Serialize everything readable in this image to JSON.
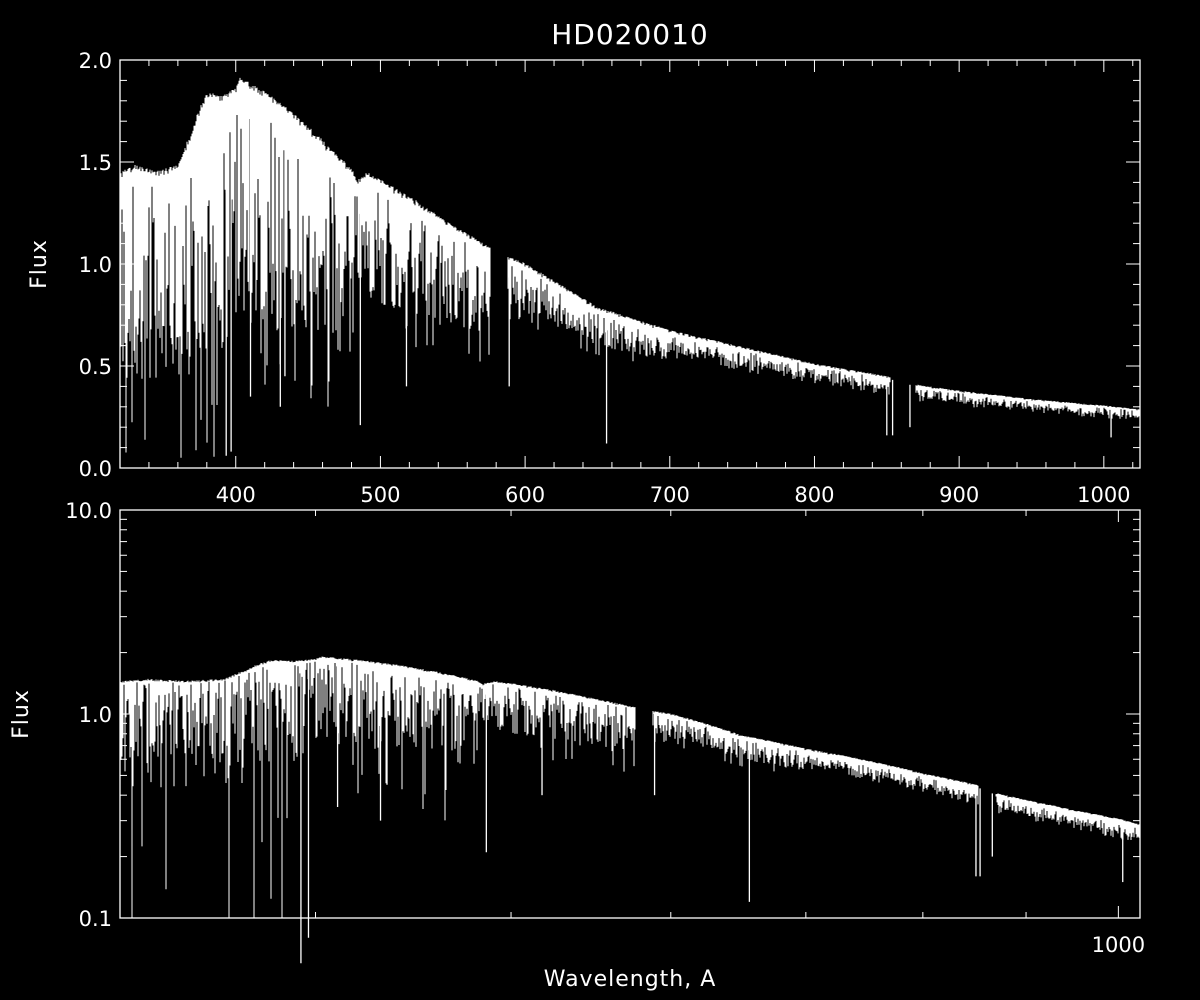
{
  "chart_data": {
    "type": "line",
    "title": "HD020010",
    "xlabel": "Wavelength, A",
    "panels": [
      {
        "scale": "linear",
        "x_range": [
          320,
          1025
        ],
        "y_range": [
          0,
          2
        ],
        "ylabel": "Flux",
        "x_ticks": [
          400,
          500,
          600,
          700,
          800,
          900,
          1000
        ],
        "y_ticks": [
          0,
          0.5,
          1,
          1.5,
          2
        ],
        "x_tick_labels": [
          "400",
          "500",
          "600",
          "700",
          "800",
          "900",
          "1000"
        ],
        "y_tick_labels": [
          "0.0",
          "0.5",
          "1.0",
          "1.5",
          "2.0"
        ]
      },
      {
        "scale": "log-log",
        "x_range": [
          320,
          1025
        ],
        "y_range": [
          0.1,
          10
        ],
        "ylabel": "Flux",
        "x_ticks": [
          1000
        ],
        "y_ticks": [
          0.1,
          1,
          10
        ],
        "x_tick_labels": [
          "1000"
        ],
        "y_tick_labels": [
          "0.1",
          "1.0",
          "10.0"
        ]
      }
    ],
    "series": [
      {
        "name": "",
        "continuum_x": [
          320,
          330,
          345,
          360,
          370,
          375,
          380,
          390,
          400,
          403,
          410,
          420,
          440,
          460,
          480,
          484,
          490,
          500,
          520,
          550,
          575,
          585,
          600,
          650,
          700,
          750,
          800,
          850,
          870,
          900,
          950,
          1000,
          1025
        ],
        "continuum_y": [
          1.42,
          1.45,
          1.42,
          1.45,
          1.62,
          1.72,
          1.8,
          1.78,
          1.82,
          1.87,
          1.84,
          1.8,
          1.7,
          1.57,
          1.43,
          1.37,
          1.42,
          1.38,
          1.3,
          1.16,
          1.06,
          1.02,
          0.98,
          0.77,
          0.66,
          0.58,
          0.5,
          0.44,
          0.4,
          0.37,
          0.33,
          0.3,
          0.28
        ],
        "gaps": [
          [
            576,
            588
          ],
          [
            852,
            870
          ]
        ],
        "absorption_lines": [
          {
            "x": 393.4,
            "y": 0.06
          },
          {
            "x": 396.8,
            "y": 0.08
          },
          {
            "x": 410.2,
            "y": 0.35
          },
          {
            "x": 430.8,
            "y": 0.3
          },
          {
            "x": 434.0,
            "y": 0.45
          },
          {
            "x": 486.1,
            "y": 0.21
          },
          {
            "x": 518.0,
            "y": 0.4
          },
          {
            "x": 589.0,
            "y": 0.4
          },
          {
            "x": 656.3,
            "y": 0.12
          },
          {
            "x": 850.0,
            "y": 0.16
          },
          {
            "x": 854.0,
            "y": 0.16
          },
          {
            "x": 866.0,
            "y": 0.2
          },
          {
            "x": 1005.0,
            "y": 0.15
          }
        ]
      }
    ],
    "grid": false
  }
}
